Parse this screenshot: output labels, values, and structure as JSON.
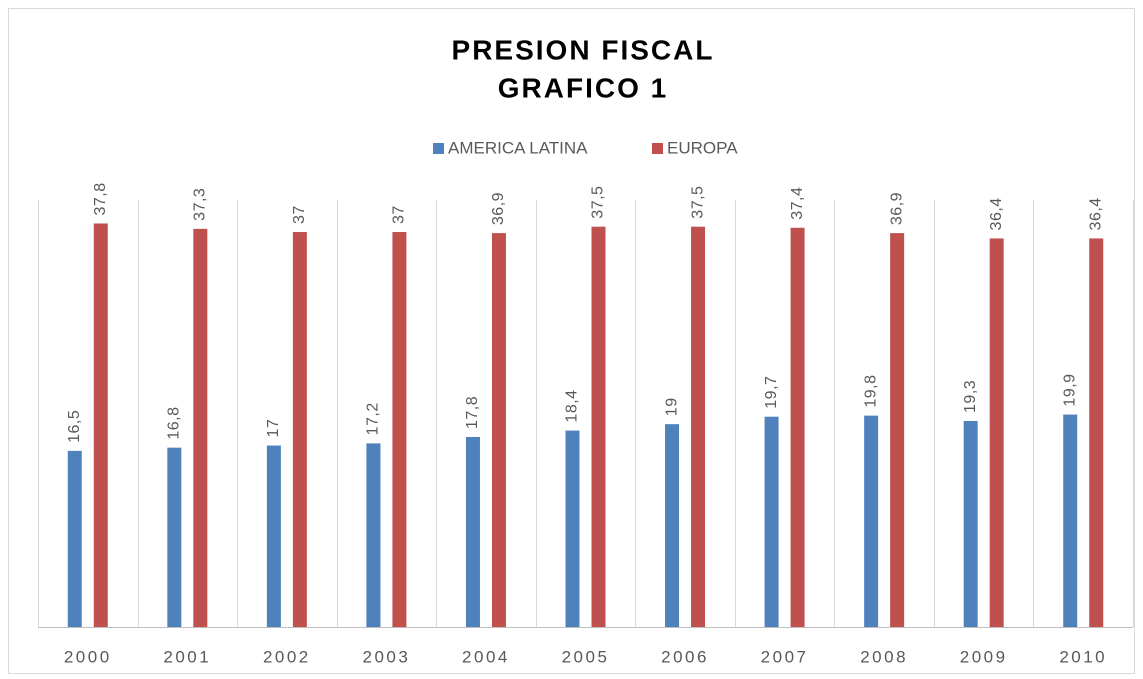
{
  "chart_data": {
    "type": "bar",
    "title": [
      "PRESION FISCAL",
      "GRAFICO 1"
    ],
    "categories": [
      "2000",
      "2001",
      "2002",
      "2003",
      "2004",
      "2005",
      "2006",
      "2007",
      "2008",
      "2009",
      "2010"
    ],
    "series": [
      {
        "name": "AMERICA LATINA",
        "color": "#4f81bd",
        "values": [
          16.5,
          16.8,
          17,
          17.2,
          17.8,
          18.4,
          19,
          19.7,
          19.8,
          19.3,
          19.9
        ],
        "value_labels": [
          "16,5",
          "16,8",
          "17",
          "17,2",
          "17,8",
          "18,4",
          "19",
          "19,7",
          "19,8",
          "19,3",
          "19,9"
        ]
      },
      {
        "name": "EUROPA",
        "color": "#c0504d",
        "values": [
          37.8,
          37.3,
          37,
          37,
          36.9,
          37.5,
          37.5,
          37.4,
          36.9,
          36.4,
          36.4
        ],
        "value_labels": [
          "37,8",
          "37,3",
          "37",
          "37",
          "36,9",
          "37,5",
          "37,5",
          "37,4",
          "36,9",
          "36,4",
          "36,4"
        ]
      }
    ],
    "ylim": [
      0,
      40
    ],
    "legend": "top"
  }
}
